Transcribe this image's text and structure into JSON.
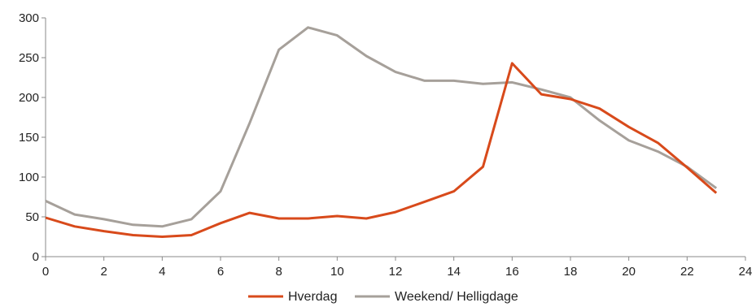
{
  "chart_data": {
    "type": "line",
    "title": "",
    "xlabel": "",
    "ylabel": "",
    "xlim": [
      0,
      24
    ],
    "ylim": [
      0,
      300
    ],
    "xticks": [
      0,
      2,
      4,
      6,
      8,
      10,
      12,
      14,
      16,
      18,
      20,
      22,
      24
    ],
    "yticks": [
      0,
      50,
      100,
      150,
      200,
      250,
      300
    ],
    "x": [
      0,
      1,
      2,
      3,
      4,
      5,
      6,
      7,
      8,
      9,
      10,
      11,
      12,
      13,
      14,
      15,
      16,
      17,
      18,
      19,
      20,
      21,
      22,
      23
    ],
    "series": [
      {
        "name": "Hverdag",
        "color": "#d84a1b",
        "values": [
          49,
          38,
          32,
          27,
          25,
          27,
          42,
          55,
          48,
          48,
          51,
          48,
          56,
          69,
          82,
          113,
          243,
          204,
          198,
          186,
          163,
          143,
          112,
          80
        ]
      },
      {
        "name": "Weekend/ Helligdage",
        "color": "#a6a09a",
        "values": [
          70,
          53,
          47,
          40,
          38,
          47,
          82,
          168,
          260,
          288,
          278,
          252,
          232,
          221,
          221,
          217,
          219,
          210,
          200,
          171,
          146,
          132,
          113,
          86
        ]
      }
    ],
    "grid": false,
    "legend_position": "bottom-center"
  }
}
